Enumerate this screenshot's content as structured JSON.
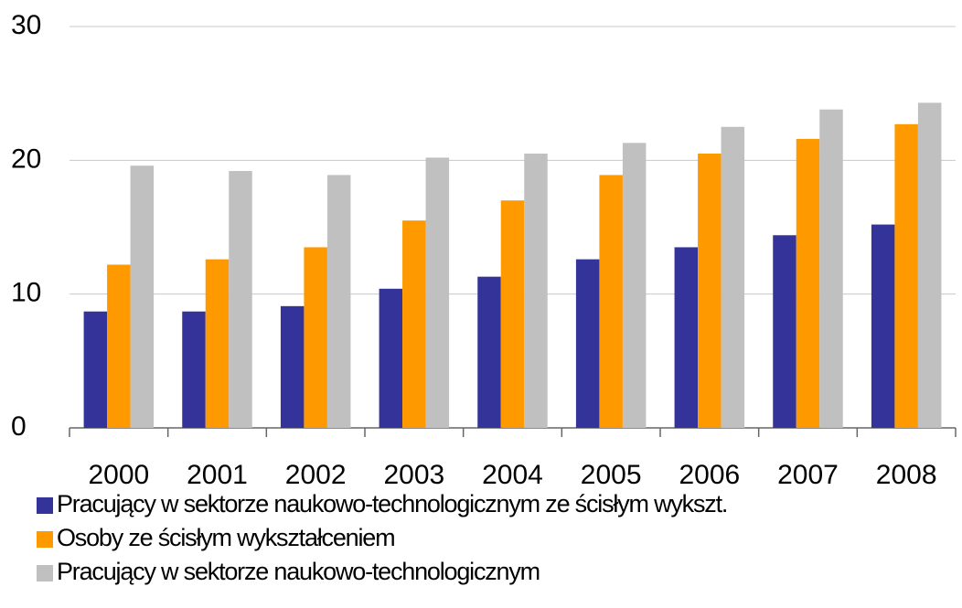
{
  "chart_data": {
    "type": "bar",
    "categories": [
      "2000",
      "2001",
      "2002",
      "2003",
      "2004",
      "2005",
      "2006",
      "2007",
      "2008"
    ],
    "series": [
      {
        "name": "Pracujący w sektorze naukowo-technologicznym ze ścisłym wykszt.",
        "color": "#333399",
        "values": [
          8.7,
          8.7,
          9.1,
          10.4,
          11.3,
          12.6,
          13.5,
          14.4,
          15.2
        ]
      },
      {
        "name": "Osoby ze ścisłym wykształceniem",
        "color": "#ff9900",
        "values": [
          12.2,
          12.6,
          13.5,
          15.5,
          17.0,
          18.9,
          20.5,
          21.6,
          22.7
        ]
      },
      {
        "name": "Pracujący w sektorze naukowo-technologicznym",
        "color": "#c0c0c0",
        "values": [
          19.6,
          19.2,
          18.9,
          20.2,
          20.5,
          21.3,
          22.5,
          23.8,
          24.3
        ]
      }
    ],
    "ylim": [
      0,
      30
    ],
    "yticks": [
      0,
      10,
      20,
      30
    ],
    "grid": true,
    "legend": "bottom"
  }
}
